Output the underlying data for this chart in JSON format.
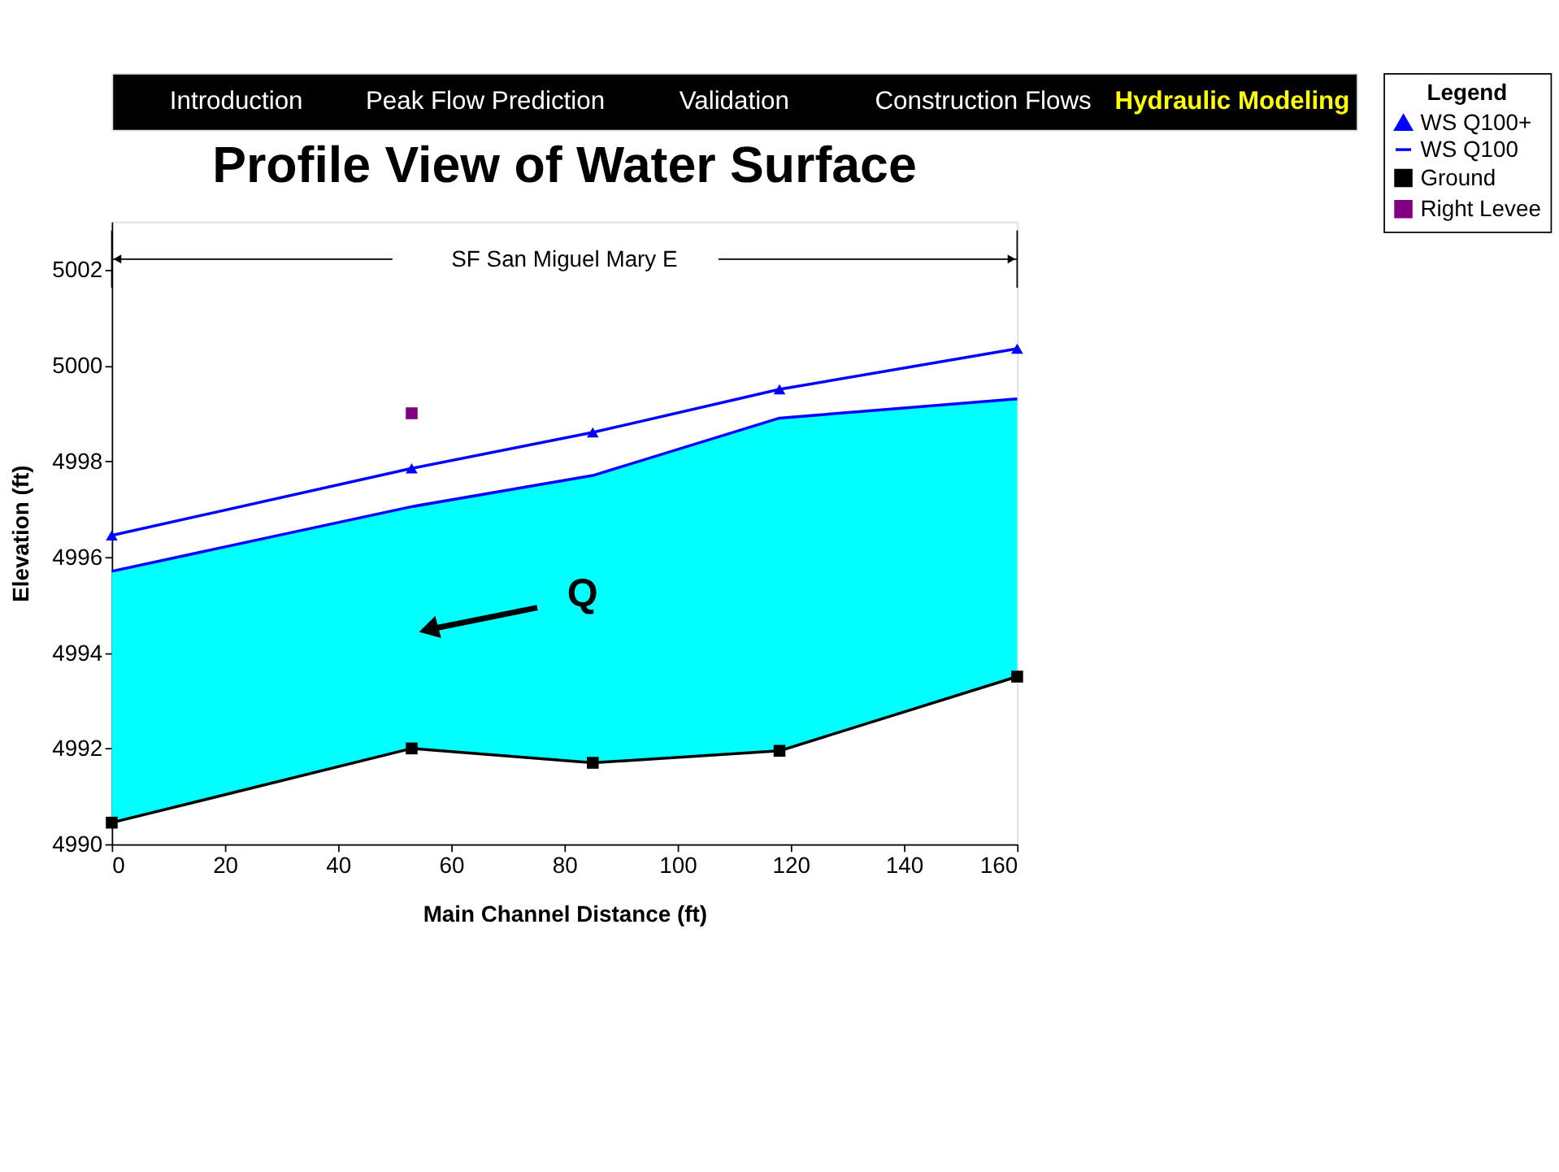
{
  "chart_data": {
    "type": "line",
    "title": "Profile View of Water Surface",
    "xlabel": "Main Channel Distance (ft)",
    "ylabel": "Elevation (ft)",
    "legend_title": "Legend",
    "legend": "right",
    "annotations": [
      "Introduction",
      "Peak Flow Prediction",
      "Validation",
      "Construction Flows",
      "Hydraulic Modeling",
      "SF San Miguel Mary E",
      "Q"
    ],
    "xlim": [
      0,
      160
    ],
    "xticks": [
      0,
      20,
      40,
      60,
      80,
      100,
      120,
      140,
      160
    ],
    "ylim": [
      4990,
      5003
    ],
    "yticks": [
      4990,
      4992,
      4994,
      4996,
      4998,
      5000,
      5002
    ],
    "series": [
      {
        "name": "WS  Q100+",
        "marker": "triangle",
        "color": "#0000ff",
        "x": [
          0,
          53,
          85,
          118,
          160
        ],
        "values": [
          4996.45,
          4997.85,
          4998.6,
          4999.5,
          5000.35
        ]
      },
      {
        "name": "WS  Q100",
        "marker": "none",
        "color": "#0000ff",
        "x": [
          0,
          53,
          85,
          118,
          160
        ],
        "values": [
          4995.7,
          4997.05,
          4997.7,
          4998.9,
          4999.3
        ],
        "lower": [
          4990.45,
          4992.0,
          4991.7,
          4991.95,
          4993.5
        ],
        "upper": [
          4995.7,
          4997.05,
          4997.7,
          4998.9,
          4999.3
        ]
      },
      {
        "name": "Ground",
        "marker": "square",
        "color": "#000000",
        "x": [
          0,
          53,
          85,
          118,
          160
        ],
        "values": [
          4990.45,
          4992.0,
          4991.7,
          4991.95,
          4993.5
        ]
      },
      {
        "name": "Right Levee",
        "type": "scatter",
        "marker": "square",
        "color": "#800080",
        "x": [
          53
        ],
        "values": [
          4999.0
        ]
      }
    ]
  }
}
